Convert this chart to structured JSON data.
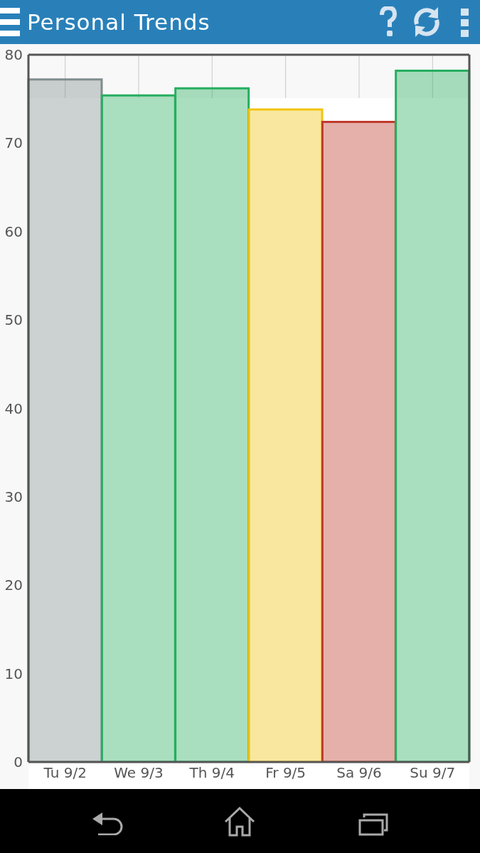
{
  "chart_data": {
    "type": "bar",
    "title": "Personal Trends",
    "categories": [
      "Tu 9/2",
      "We 9/3",
      "Th 9/4",
      "Fr 9/5",
      "Sa 9/6",
      "Su 9/7"
    ],
    "values": [
      77.2,
      75.4,
      76.2,
      73.8,
      72.4,
      78.2
    ],
    "colors": [
      "#7f8c8d",
      "#27ae60",
      "#27ae60",
      "#f1c40f",
      "#c0392b",
      "#27ae60"
    ],
    "ylim": [
      0,
      80
    ],
    "yticks": [
      0,
      10,
      20,
      30,
      40,
      50,
      60,
      70,
      80
    ],
    "grid": true
  }
}
